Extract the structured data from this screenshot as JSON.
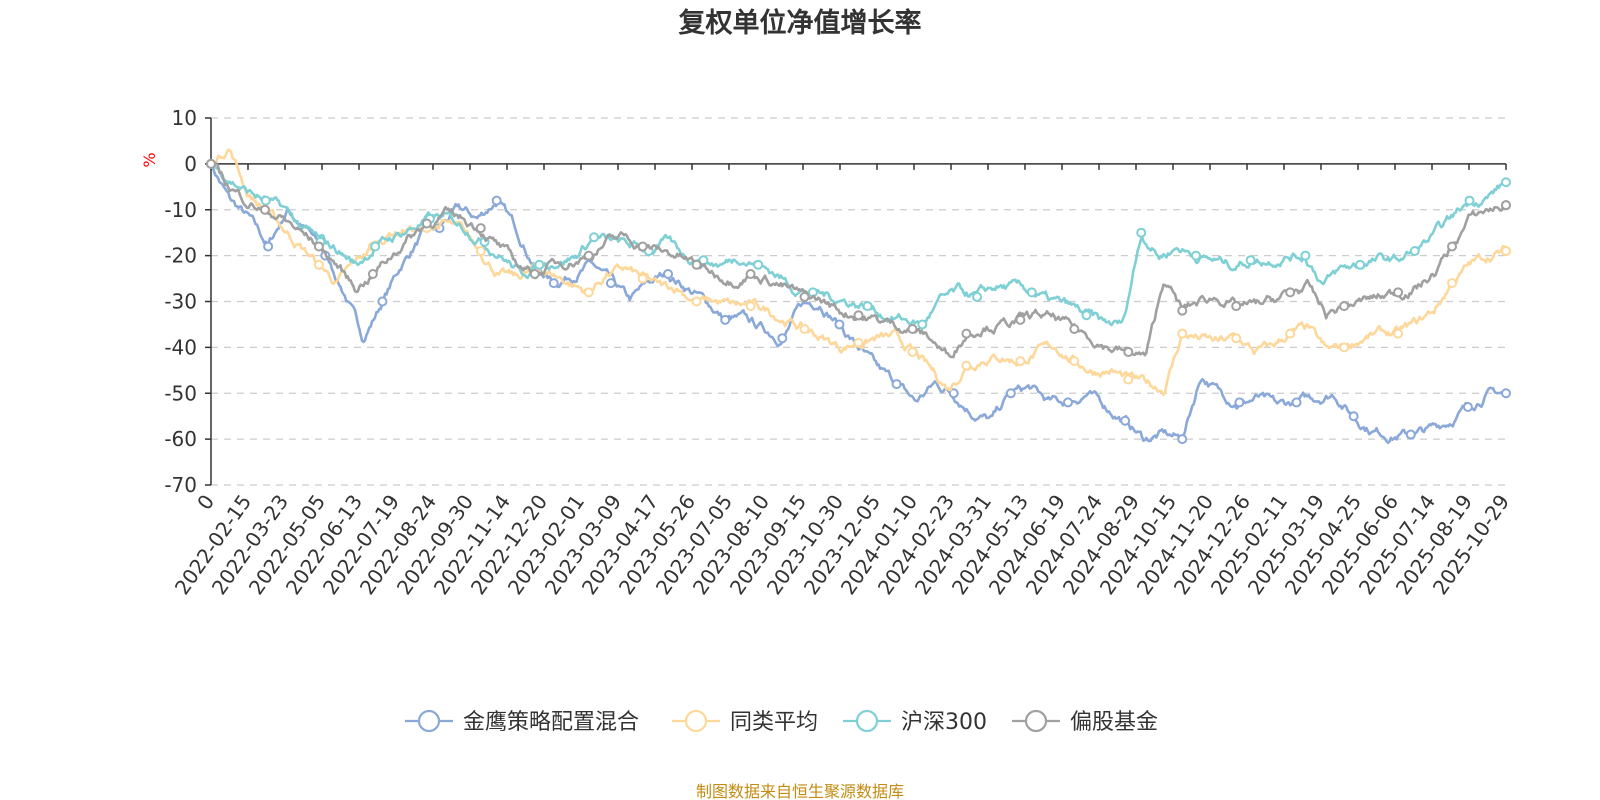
{
  "chart_data": {
    "type": "line",
    "title": "复权单位净值增长率",
    "ylabel": "%",
    "xlabel": "",
    "ylim": [
      -70,
      10
    ],
    "y_ticks": [
      10,
      0,
      -10,
      -20,
      -30,
      -40,
      -50,
      -60,
      -70
    ],
    "x_tick_labels": [
      "0",
      "2022-02-15",
      "2022-03-23",
      "2022-05-05",
      "2022-06-13",
      "2022-07-19",
      "2022-08-24",
      "2022-09-30",
      "2022-11-14",
      "2022-12-20",
      "2023-02-01",
      "2023-03-09",
      "2023-04-17",
      "2023-05-26",
      "2023-07-05",
      "2023-08-10",
      "2023-09-15",
      "2023-10-30",
      "2023-12-05",
      "2024-01-10",
      "2024-02-23",
      "2024-03-31",
      "2024-05-13",
      "2024-06-19",
      "2024-07-24",
      "2024-08-29",
      "2024-10-15",
      "2024-11-20",
      "2024-12-26",
      "2025-02-11",
      "2025-03-19",
      "2025-04-25",
      "2025-06-06",
      "2025-07-14",
      "2025-08-19",
      "2025-10-29"
    ],
    "grid": true,
    "legend_position": "bottom",
    "series": [
      {
        "name": "金鹰策略配置混合",
        "color": "#8aa8d8",
        "values": [
          0,
          -8,
          -12,
          -18,
          -10,
          -14,
          -20,
          -28,
          -38,
          -30,
          -22,
          -16,
          -14,
          -10,
          -12,
          -8,
          -14,
          -22,
          -26,
          -24,
          -22,
          -26,
          -30,
          -26,
          -24,
          -27,
          -30,
          -34,
          -34,
          -36,
          -38,
          -31,
          -30,
          -35,
          -40,
          -45,
          -48,
          -52,
          -48,
          -50,
          -54,
          -56,
          -50,
          -49,
          -52,
          -52,
          -50,
          -53,
          -56,
          -60,
          -59,
          -60,
          -46,
          -50,
          -52,
          -51,
          -53,
          -52,
          -51,
          -50,
          -55,
          -58,
          -59,
          -59,
          -58,
          -56,
          -53,
          -50,
          -50
        ]
      },
      {
        "name": "同类平均",
        "color": "#fdd89a",
        "values": [
          0,
          4,
          -6,
          -10,
          -14,
          -18,
          -22,
          -26,
          -22,
          -18,
          -15,
          -14,
          -14,
          -13,
          -15,
          -19,
          -24,
          -25,
          -23,
          -24,
          -26,
          -28,
          -24,
          -23,
          -25,
          -27,
          -27,
          -30,
          -30,
          -31,
          -31,
          -32,
          -34,
          -36,
          -38,
          -40,
          -39,
          -38,
          -38,
          -41,
          -45,
          -49,
          -44,
          -42,
          -42,
          -43,
          -41,
          -40,
          -43,
          -45,
          -45,
          -47,
          -48,
          -49,
          -37,
          -38,
          -39,
          -38,
          -41,
          -40,
          -37,
          -36,
          -41,
          -40,
          -38,
          -37,
          -37,
          -35,
          -32,
          -26,
          -22,
          -20,
          -19
        ]
      },
      {
        "name": "沪深300",
        "color": "#7fd0d4",
        "values": [
          0,
          -3,
          -6,
          -8,
          -10,
          -14,
          -17,
          -19,
          -22,
          -18,
          -16,
          -14,
          -12,
          -12,
          -14,
          -17,
          -20,
          -24,
          -22,
          -21,
          -20,
          -16,
          -17,
          -18,
          -19,
          -17,
          -20,
          -21,
          -22,
          -20,
          -22,
          -24,
          -27,
          -28,
          -29,
          -30,
          -31,
          -33,
          -34,
          -35,
          -30,
          -28,
          -29,
          -27,
          -27,
          -28,
          -30,
          -31,
          -33,
          -35,
          -35,
          -15,
          -20,
          -18,
          -20,
          -21,
          -22,
          -21,
          -21,
          -20,
          -20,
          -26,
          -23,
          -22,
          -21,
          -21,
          -19,
          -16,
          -12,
          -8,
          -7,
          -4
        ]
      },
      {
        "name": "偏股基金",
        "color": "#a0a0a0",
        "values": [
          0,
          -5,
          -8,
          -10,
          -12,
          -15,
          -18,
          -22,
          -27,
          -24,
          -20,
          -16,
          -13,
          -11,
          -12,
          -14,
          -18,
          -22,
          -24,
          -22,
          -21,
          -20,
          -17,
          -16,
          -18,
          -19,
          -20,
          -22,
          -24,
          -25,
          -24,
          -25,
          -27,
          -29,
          -30,
          -32,
          -33,
          -34,
          -35,
          -36,
          -38,
          -42,
          -37,
          -35,
          -35,
          -34,
          -33,
          -34,
          -36,
          -38,
          -40,
          -41,
          -42,
          -25,
          -32,
          -30,
          -29,
          -31,
          -31,
          -30,
          -28,
          -27,
          -33,
          -31,
          -30,
          -29,
          -28,
          -27,
          -24,
          -18,
          -12,
          -10,
          -9
        ]
      }
    ]
  },
  "footer": {
    "source": "制图数据来自恒生聚源数据库"
  }
}
